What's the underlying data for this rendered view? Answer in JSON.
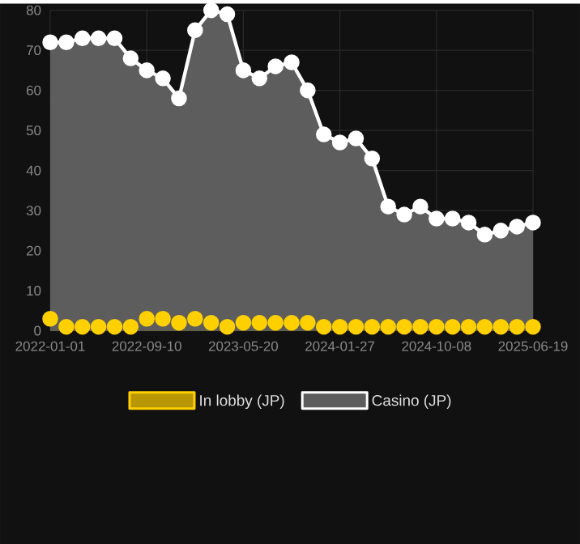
{
  "chart_data": {
    "type": "area",
    "categories": [
      "2022-01-01",
      null,
      null,
      null,
      null,
      null,
      "2022-09-10",
      null,
      null,
      null,
      null,
      null,
      "2023-05-20",
      null,
      null,
      null,
      null,
      null,
      "2024-01-27",
      null,
      null,
      null,
      null,
      null,
      "2024-10-08",
      null,
      null,
      null,
      null,
      null,
      "2025-06-19"
    ],
    "series": [
      {
        "name": "In lobby (JP)",
        "color": "#ffd000",
        "values": [
          3,
          1,
          1,
          1,
          1,
          1,
          3,
          3,
          2,
          3,
          2,
          1,
          2,
          2,
          2,
          2,
          2,
          1,
          1,
          1,
          1,
          1,
          1,
          1,
          1,
          1,
          1,
          1,
          1,
          1,
          1
        ]
      },
      {
        "name": "Casino (JP)",
        "color": "#ffffff",
        "values": [
          72,
          72,
          73,
          73,
          73,
          68,
          65,
          63,
          58,
          75,
          80,
          79,
          65,
          63,
          66,
          67,
          60,
          49,
          47,
          48,
          43,
          31,
          29,
          31,
          28,
          28,
          27,
          24,
          25,
          26,
          27
        ]
      }
    ],
    "ylim": [
      0,
      80
    ],
    "yticks": [
      0,
      10,
      20,
      30,
      40,
      50,
      60,
      70,
      80
    ],
    "grid": true,
    "legend": "bottom",
    "marker": "circle"
  }
}
